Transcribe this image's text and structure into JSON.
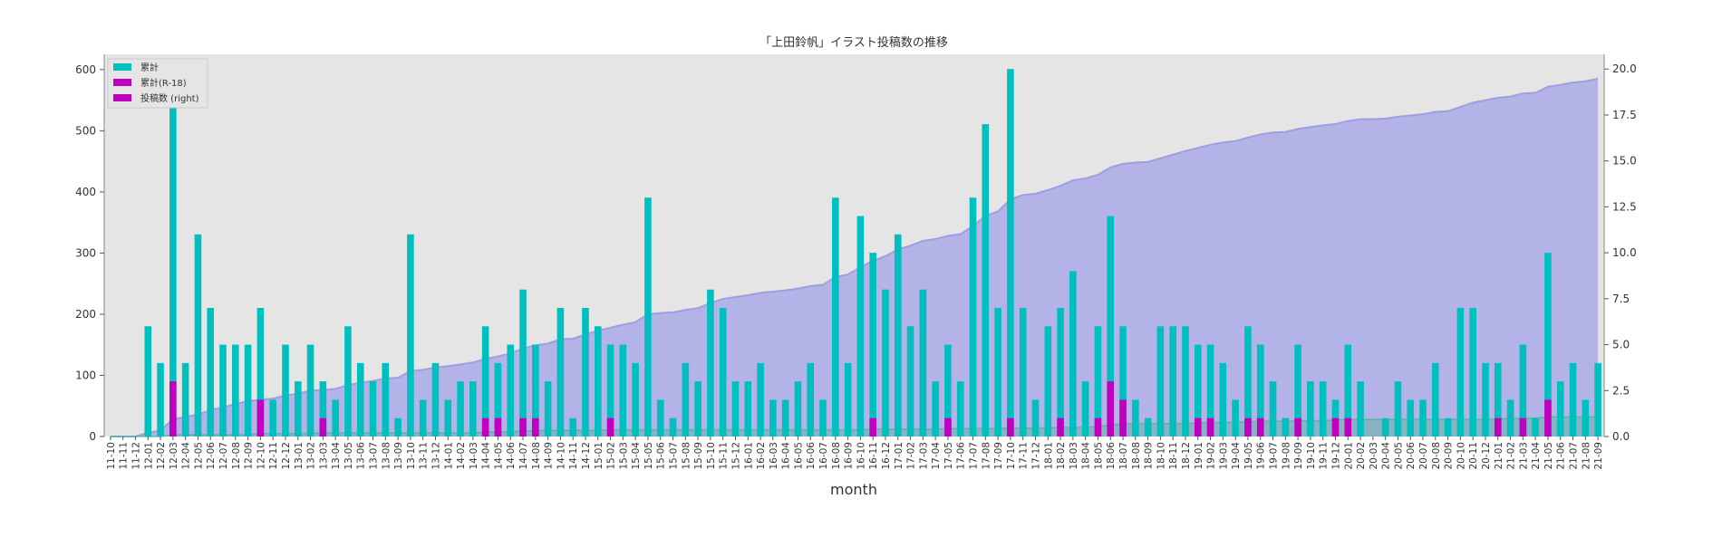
{
  "chart_data": {
    "type": "bar",
    "title": "「上田鈴帆」イラスト投稿数の推移",
    "xlabel": "month",
    "ylabel": "",
    "ylim": [
      0,
      625
    ],
    "y2lim": [
      0,
      20.8
    ],
    "left_ticks": [
      0,
      100,
      200,
      300,
      400,
      500,
      600
    ],
    "right_ticks": [
      "0.0",
      "2.5",
      "5.0",
      "7.5",
      "10.0",
      "12.5",
      "15.0",
      "17.5",
      "20.0"
    ],
    "grid": false,
    "legend_position": "top-left",
    "colors": {
      "cumulative": "#00bfbf",
      "cumulative_r18": "#bf00bf",
      "monthly": "#bf00bf",
      "area": "#b4b3e8",
      "area_line": "#9f9ee0",
      "background": "#e5e5e5",
      "r18_area": "#4fb39a"
    },
    "categories": [
      "11-10",
      "11-11",
      "11-12",
      "12-01",
      "12-02",
      "12-03",
      "12-04",
      "12-05",
      "12-06",
      "12-07",
      "12-08",
      "12-09",
      "12-10",
      "12-11",
      "12-12",
      "13-01",
      "13-02",
      "13-03",
      "13-04",
      "13-05",
      "13-06",
      "13-07",
      "13-08",
      "13-09",
      "13-10",
      "13-11",
      "13-12",
      "14-01",
      "14-02",
      "14-03",
      "14-04",
      "14-05",
      "14-06",
      "14-07",
      "14-08",
      "14-09",
      "14-10",
      "14-11",
      "14-12",
      "15-01",
      "15-02",
      "15-03",
      "15-04",
      "15-05",
      "15-06",
      "15-07",
      "15-08",
      "15-09",
      "15-10",
      "15-11",
      "15-12",
      "16-01",
      "16-02",
      "16-03",
      "16-04",
      "16-05",
      "16-06",
      "16-07",
      "16-08",
      "16-09",
      "16-10",
      "16-11",
      "16-12",
      "17-01",
      "17-02",
      "17-03",
      "17-04",
      "17-05",
      "17-06",
      "17-07",
      "17-08",
      "17-09",
      "17-10",
      "17-11",
      "17-12",
      "18-01",
      "18-02",
      "18-03",
      "18-04",
      "18-05",
      "18-06",
      "18-07",
      "18-08",
      "18-09",
      "18-10",
      "18-11",
      "18-12",
      "19-01",
      "19-02",
      "19-03",
      "19-04",
      "19-05",
      "19-06",
      "19-07",
      "19-08",
      "19-09",
      "19-10",
      "19-11",
      "19-12",
      "20-01",
      "20-02",
      "20-03",
      "20-04",
      "20-05",
      "20-06",
      "20-07",
      "20-08",
      "20-09",
      "20-10",
      "20-11",
      "20-12",
      "21-01",
      "21-02",
      "21-03",
      "21-04",
      "21-05",
      "21-06",
      "21-07",
      "21-08",
      "21-09"
    ],
    "series": [
      {
        "name": "累計",
        "axis": "left",
        "style": "area",
        "values": [
          0,
          0,
          0,
          6,
          10,
          28,
          32,
          36,
          43,
          48,
          53,
          58,
          60,
          62,
          67,
          70,
          75,
          76,
          78,
          84,
          88,
          91,
          95,
          96,
          107,
          109,
          113,
          115,
          118,
          121,
          127,
          131,
          136,
          144,
          149,
          152,
          159,
          160,
          167,
          173,
          178,
          183,
          187,
          200,
          202,
          203,
          207,
          210,
          218,
          225,
          228,
          231,
          235,
          237,
          239,
          242,
          246,
          248,
          261,
          265,
          277,
          287,
          295,
          306,
          312,
          320,
          323,
          328,
          331,
          344,
          361,
          368,
          388,
          395,
          397,
          403,
          410,
          419,
          422,
          428,
          440,
          446,
          448,
          449,
          455,
          461,
          467,
          472,
          477,
          481,
          483,
          489,
          494,
          497,
          498,
          503,
          506,
          509,
          511,
          516,
          519,
          519,
          520,
          523,
          525,
          527,
          531,
          532,
          539,
          546,
          550,
          554,
          556,
          561,
          562,
          572,
          575,
          579,
          581,
          585
        ]
      },
      {
        "name": "累計(R-18)",
        "axis": "left",
        "style": "area",
        "values": [
          0,
          0,
          0,
          0,
          0,
          3,
          3,
          3,
          3,
          3,
          3,
          3,
          5,
          5,
          5,
          5,
          5,
          6,
          6,
          6,
          6,
          6,
          6,
          6,
          6,
          6,
          6,
          6,
          6,
          6,
          7,
          8,
          8,
          9,
          10,
          10,
          10,
          10,
          10,
          10,
          11,
          11,
          11,
          11,
          11,
          11,
          11,
          11,
          11,
          11,
          11,
          11,
          11,
          11,
          11,
          11,
          11,
          11,
          11,
          11,
          11,
          12,
          12,
          12,
          12,
          12,
          12,
          13,
          13,
          13,
          13,
          13,
          14,
          14,
          14,
          14,
          15,
          15,
          15,
          16,
          19,
          21,
          21,
          21,
          21,
          21,
          21,
          22,
          23,
          23,
          23,
          24,
          25,
          25,
          25,
          26,
          26,
          26,
          27,
          28,
          28,
          28,
          28,
          28,
          28,
          28,
          28,
          28,
          28,
          28,
          28,
          29,
          29,
          30,
          30,
          32,
          32,
          32,
          32,
          32
        ]
      },
      {
        "name": "投稿数 (right)",
        "axis": "right",
        "style": "bar",
        "values": [
          0,
          0,
          0,
          6,
          4,
          18,
          4,
          11,
          7,
          5,
          5,
          5,
          7,
          2,
          5,
          3,
          5,
          3,
          2,
          6,
          4,
          3,
          4,
          1,
          11,
          2,
          4,
          2,
          3,
          3,
          6,
          4,
          5,
          8,
          5,
          3,
          7,
          1,
          7,
          6,
          5,
          5,
          4,
          13,
          2,
          1,
          4,
          3,
          8,
          7,
          3,
          3,
          4,
          2,
          2,
          3,
          4,
          2,
          13,
          4,
          12,
          10,
          8,
          11,
          6,
          8,
          3,
          5,
          3,
          13,
          17,
          7,
          20,
          7,
          2,
          6,
          7,
          9,
          3,
          6,
          12,
          6,
          2,
          1,
          6,
          6,
          6,
          5,
          5,
          4,
          2,
          6,
          5,
          3,
          1,
          5,
          3,
          3,
          2,
          5,
          3,
          0,
          1,
          3,
          2,
          2,
          4,
          1,
          7,
          7,
          4,
          4,
          2,
          5,
          1,
          10,
          3,
          4,
          2,
          4
        ]
      },
      {
        "name": "R-18",
        "axis": "right",
        "style": "bar-overlay",
        "values": [
          0,
          0,
          0,
          0,
          0,
          3,
          0,
          0,
          0,
          0,
          0,
          0,
          2,
          0,
          0,
          0,
          0,
          1,
          0,
          0,
          0,
          0,
          0,
          0,
          0,
          0,
          0,
          0,
          0,
          0,
          1,
          1,
          0,
          1,
          1,
          0,
          0,
          0,
          0,
          0,
          1,
          0,
          0,
          0,
          0,
          0,
          0,
          0,
          0,
          0,
          0,
          0,
          0,
          0,
          0,
          0,
          0,
          0,
          0,
          0,
          0,
          1,
          0,
          0,
          0,
          0,
          0,
          1,
          0,
          0,
          0,
          0,
          1,
          0,
          0,
          0,
          1,
          0,
          0,
          1,
          3,
          2,
          0,
          0,
          0,
          0,
          0,
          1,
          1,
          0,
          0,
          1,
          1,
          0,
          0,
          1,
          0,
          0,
          1,
          1,
          0,
          0,
          0,
          0,
          0,
          0,
          0,
          0,
          0,
          0,
          0,
          1,
          0,
          1,
          0,
          2,
          0,
          0,
          0,
          0
        ]
      }
    ]
  }
}
